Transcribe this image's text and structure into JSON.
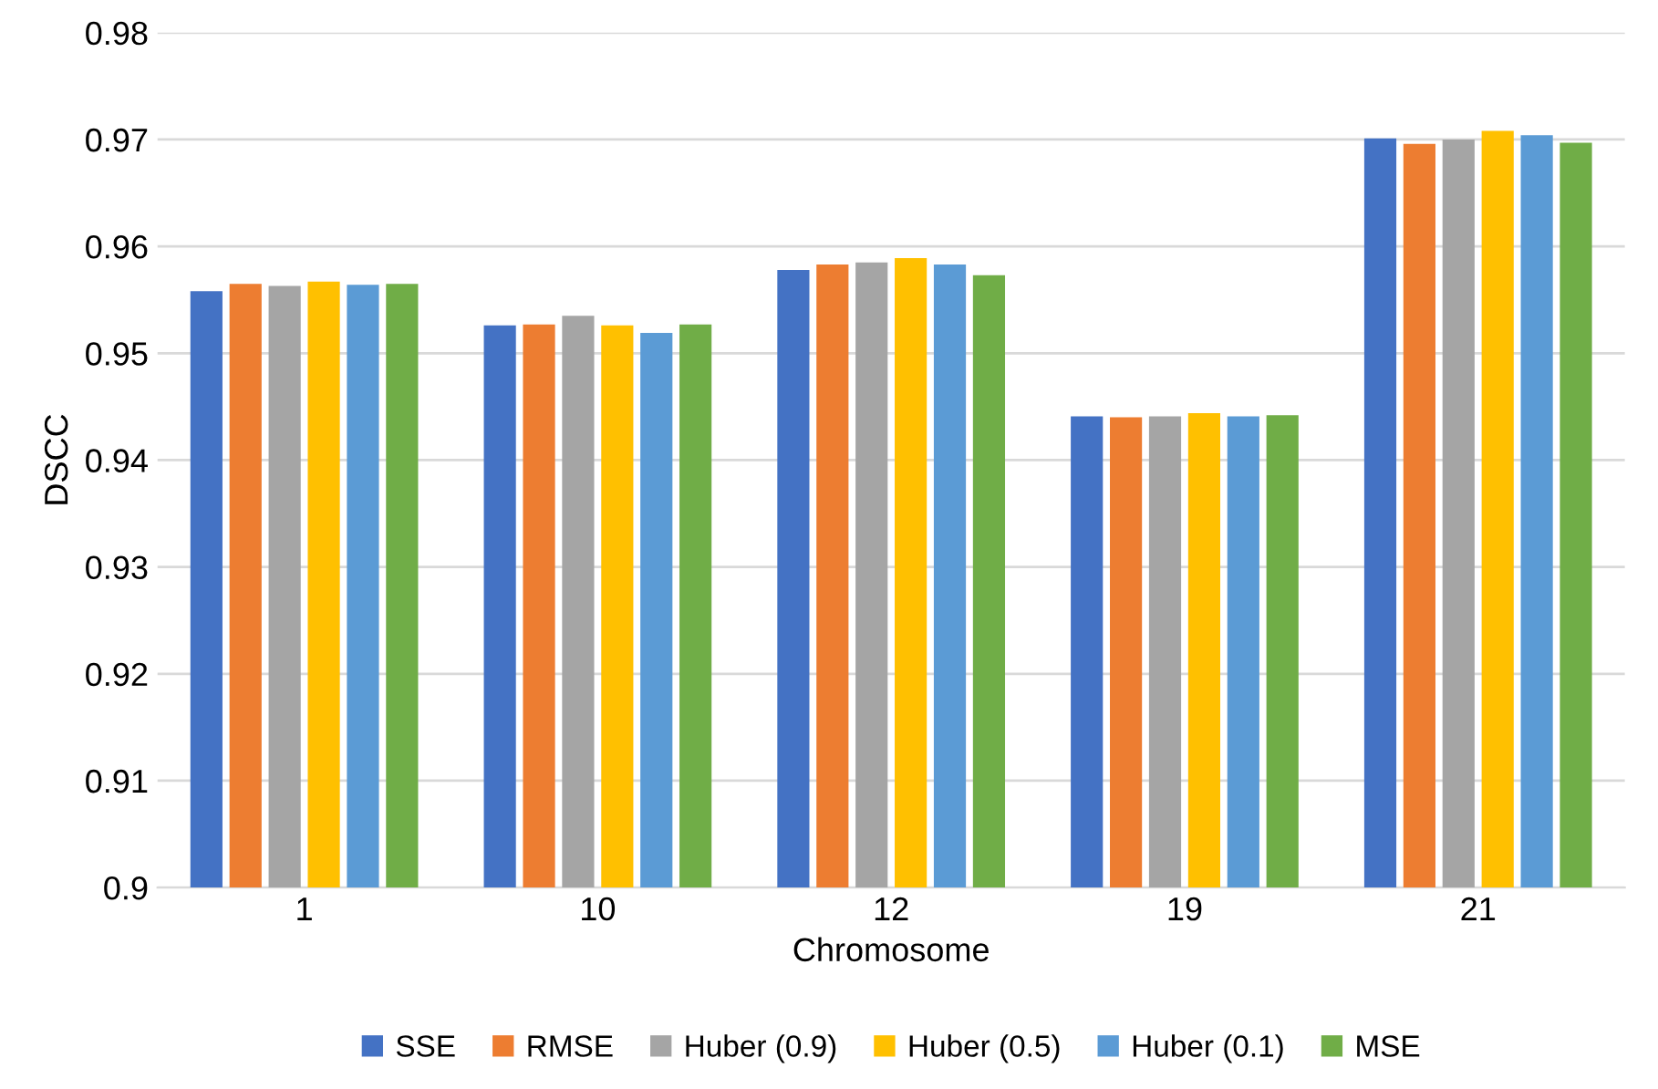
{
  "chart_data": {
    "type": "bar",
    "xlabel": "Chromosome",
    "ylabel": "DSCC",
    "categories": [
      "1",
      "10",
      "12",
      "19",
      "21"
    ],
    "series": [
      {
        "name": "SSE",
        "color": "#4472c4",
        "values": [
          0.9558,
          0.9526,
          0.9578,
          0.9441,
          0.9701
        ]
      },
      {
        "name": "RMSE",
        "color": "#ed7d31",
        "values": [
          0.9565,
          0.9527,
          0.9583,
          0.944,
          0.9696
        ]
      },
      {
        "name": "Huber (0.9)",
        "color": "#a5a5a5",
        "values": [
          0.9563,
          0.9535,
          0.9585,
          0.9441,
          0.97
        ]
      },
      {
        "name": "Huber (0.5)",
        "color": "#ffc000",
        "values": [
          0.9567,
          0.9526,
          0.9589,
          0.9444,
          0.9708
        ]
      },
      {
        "name": "Huber (0.1)",
        "color": "#5b9bd5",
        "values": [
          0.9564,
          0.9519,
          0.9583,
          0.9441,
          0.9704
        ]
      },
      {
        "name": "MSE",
        "color": "#70ad47",
        "values": [
          0.9565,
          0.9527,
          0.9573,
          0.9442,
          0.9697
        ]
      }
    ],
    "ylim": [
      0.9,
      0.98
    ],
    "yticks": [
      {
        "value": 0.9,
        "label": "0.9"
      },
      {
        "value": 0.91,
        "label": "0.91"
      },
      {
        "value": 0.92,
        "label": "0.92"
      },
      {
        "value": 0.93,
        "label": "0.93"
      },
      {
        "value": 0.94,
        "label": "0.94"
      },
      {
        "value": 0.95,
        "label": "0.95"
      },
      {
        "value": 0.96,
        "label": "0.96"
      },
      {
        "value": 0.97,
        "label": "0.97"
      },
      {
        "value": 0.98,
        "label": "0.98"
      }
    ],
    "grid": "y",
    "legend": "bottom"
  }
}
